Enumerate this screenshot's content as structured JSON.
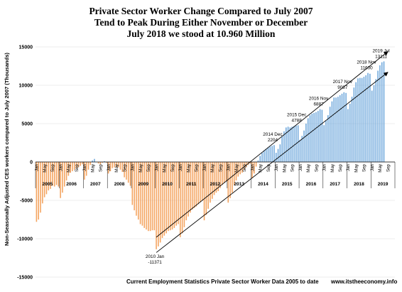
{
  "chart_data": {
    "type": "bar",
    "title_lines": [
      "Private Sector Worker Change Compared to July 2007",
      "Tend to Peak During Either November or December",
      "July 2018 we stood at 10.960 Million"
    ],
    "ylabel": "Non-Seasonally Adjusted CES workers compared to July 2007 (Thousands)",
    "footer": "Current Employment Statistics Private Sector Worker Data 2005 to date",
    "source": "www.itstheeconomy.info",
    "ylim": [
      -15000,
      15000
    ],
    "y_ticks": [
      "15000",
      "10000",
      "5000",
      "0",
      "-5000",
      "-10000",
      "-15000"
    ],
    "month_tick_labels": [
      "Jan",
      "May",
      "Sep"
    ],
    "years": [
      "2005",
      "2006",
      "2007",
      "2008",
      "2009",
      "2010",
      "2011",
      "2012",
      "2013",
      "2014",
      "2015",
      "2016",
      "2017",
      "2018",
      "2019"
    ],
    "series_start": "2005-01",
    "colors": {
      "negative": "#F4A460",
      "positive": "#6FA8DC",
      "trend": "#000000"
    },
    "values": [
      -7800,
      -7500,
      -6600,
      -5400,
      -4600,
      -4200,
      -3700,
      -3500,
      -3100,
      -3200,
      -3000,
      -3200,
      -4700,
      -4000,
      -3200,
      -2400,
      -1800,
      -1400,
      -1200,
      -1000,
      -800,
      -700,
      -500,
      -300,
      -2300,
      -1800,
      -1000,
      -400,
      200,
      400,
      0,
      -200,
      -300,
      -100,
      100,
      -100,
      -1500,
      -1200,
      -800,
      -700,
      -600,
      -700,
      -1000,
      -1300,
      -2000,
      -2300,
      -2700,
      -3100,
      -5600,
      -6300,
      -7000,
      -7500,
      -8100,
      -8300,
      -8600,
      -8800,
      -9000,
      -9000,
      -8900,
      -8900,
      -11371,
      -11000,
      -10500,
      -9900,
      -9600,
      -9300,
      -9000,
      -8900,
      -8800,
      -8600,
      -8300,
      -8100,
      -9800,
      -9300,
      -8500,
      -7600,
      -7100,
      -6600,
      -6200,
      -6000,
      -5800,
      -5500,
      -5200,
      -5000,
      -7600,
      -6900,
      -6100,
      -5300,
      -4800,
      -4300,
      -4000,
      -3800,
      -3400,
      -3000,
      -2700,
      -2500,
      -5300,
      -4700,
      -4000,
      -3000,
      -2400,
      -1900,
      -1600,
      -1400,
      -1000,
      -700,
      -400,
      -200,
      -2100,
      -1500,
      -600,
      200,
      800,
      1200,
      1500,
      1700,
      1900,
      2000,
      2100,
      2204,
      1200,
      1700,
      2300,
      3300,
      4000,
      4500,
      4600,
      4500,
      4600,
      4700,
      4750,
      4788,
      2900,
      3400,
      4100,
      5000,
      5700,
      6100,
      6300,
      6400,
      6500,
      6650,
      6887,
      6800,
      4800,
      5400,
      6100,
      7200,
      7900,
      8400,
      8400,
      8500,
      8700,
      8900,
      9087,
      9000,
      6900,
      7600,
      8500,
      9700,
      10400,
      10900,
      10960,
      10950,
      11100,
      11300,
      11600,
      11500,
      9300,
      10000,
      10800,
      11900,
      12600,
      13000,
      13111
    ],
    "annotations": [
      {
        "label_lines": [
          "2010 Jan",
          "-11371"
        ],
        "index": 60
      },
      {
        "label_lines": [
          "2014 Dec",
          "2204"
        ],
        "index": 119
      },
      {
        "label_lines": [
          "2015 Dec",
          "4788"
        ],
        "index": 131
      },
      {
        "label_lines": [
          "2016 Nov",
          "6887"
        ],
        "index": 142
      },
      {
        "label_lines": [
          "2017 Nov",
          "9087"
        ],
        "index": 154
      },
      {
        "label_lines": [
          "2018 Nov",
          "11600"
        ],
        "index": 166
      },
      {
        "label_lines": [
          "2019 Jul",
          "13111"
        ],
        "index": 174
      }
    ],
    "trend_lines": [
      {
        "from": [
          60,
          -9800
        ],
        "to": [
          176,
          14400
        ]
      },
      {
        "from": [
          60,
          -11800
        ],
        "to": [
          176,
          11700
        ]
      }
    ]
  }
}
